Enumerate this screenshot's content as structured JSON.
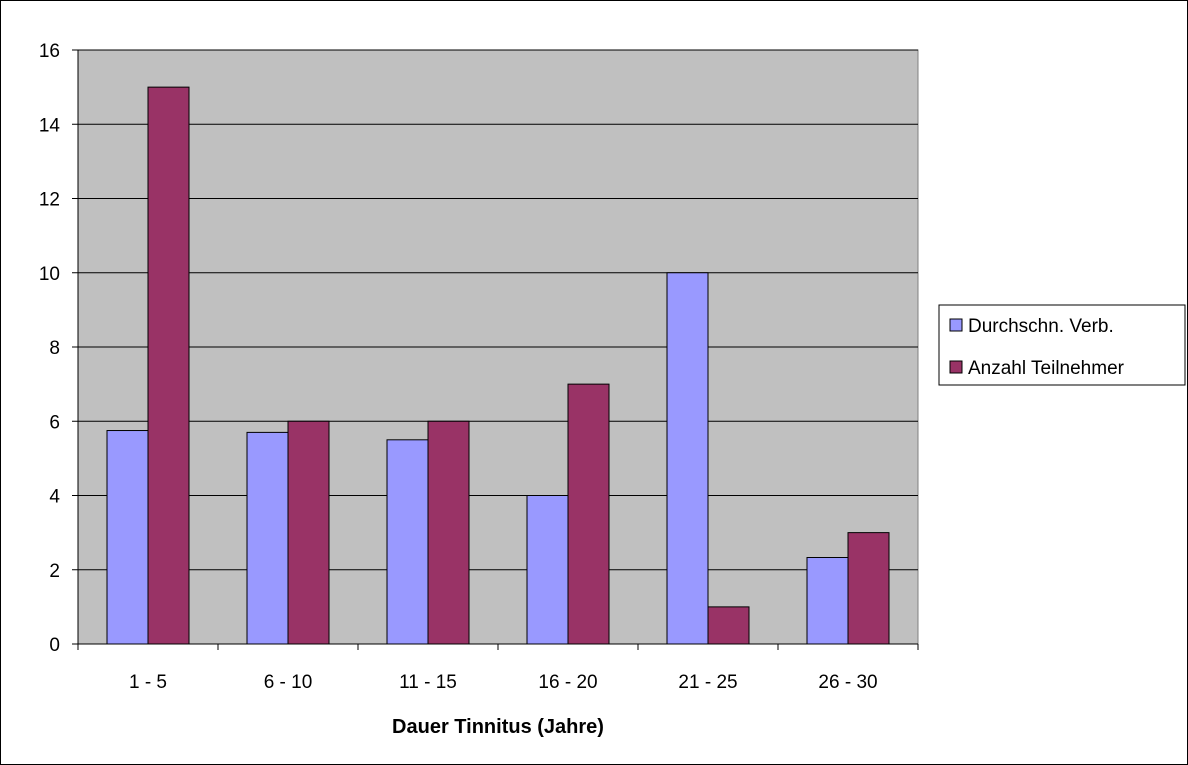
{
  "chart_data": {
    "type": "bar",
    "title": "",
    "xlabel": "Dauer Tinnitus (Jahre)",
    "ylabel": "",
    "ylim": [
      0,
      16
    ],
    "yticks": [
      0,
      2,
      4,
      6,
      8,
      10,
      12,
      14,
      16
    ],
    "grid": true,
    "legend_position": "right",
    "plot_background": "#c0c0c0",
    "categories": [
      "1 - 5",
      "6 - 10",
      "11 - 15",
      "16 - 20",
      "21 - 25",
      "26 - 30"
    ],
    "series": [
      {
        "name": "Durchschn. Verb.",
        "color": "#9999ff",
        "values": [
          5.75,
          5.7,
          5.5,
          4.0,
          10.0,
          2.33
        ]
      },
      {
        "name": "Anzahl Teilnehmer",
        "color": "#993366",
        "values": [
          15,
          6,
          6,
          7,
          1,
          3
        ]
      }
    ]
  }
}
